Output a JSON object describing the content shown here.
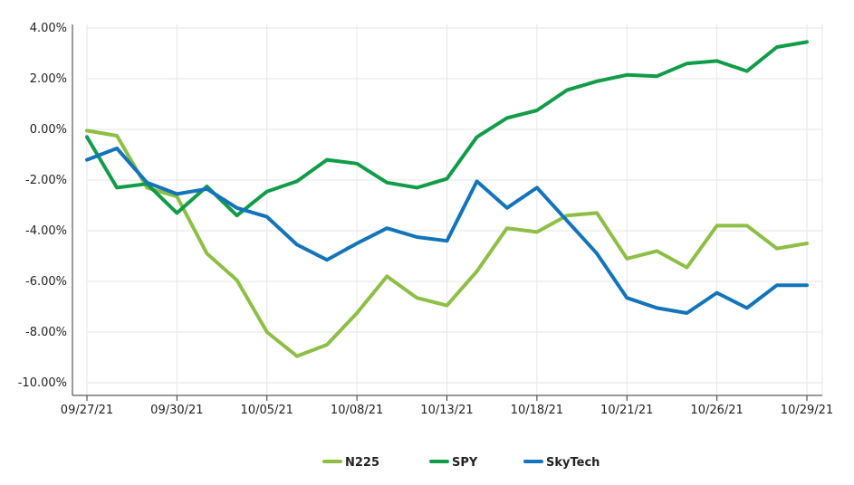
{
  "chart_data": {
    "type": "line",
    "x": [
      "09/27/21",
      "09/28/21",
      "09/29/21",
      "09/30/21",
      "10/01/21",
      "10/04/21",
      "10/05/21",
      "10/06/21",
      "10/07/21",
      "10/08/21",
      "10/11/21",
      "10/12/21",
      "10/13/21",
      "10/14/21",
      "10/15/21",
      "10/18/21",
      "10/19/21",
      "10/20/21",
      "10/21/21",
      "10/22/21",
      "10/25/21",
      "10/26/21",
      "10/27/21",
      "10/28/21",
      "10/29/21"
    ],
    "x_tick_labels": [
      "09/27/21",
      "09/30/21",
      "10/05/21",
      "10/08/21",
      "10/13/21",
      "10/18/21",
      "10/21/21",
      "10/26/21",
      "10/29/21"
    ],
    "y_tick_labels": [
      "4.00%",
      "2.00%",
      "0.00%",
      "-2.00%",
      "-4.00%",
      "-6.00%",
      "-8.00%",
      "-10.00%"
    ],
    "ylim": [
      -10.5,
      4.0
    ],
    "y_ticks": [
      4,
      2,
      0,
      -2,
      -4,
      -6,
      -8,
      -10
    ],
    "title": "",
    "xlabel": "",
    "ylabel": "",
    "grid": true,
    "legend_position": "bottom-center",
    "series": [
      {
        "name": "N225",
        "color": "#8dbf44",
        "values": [
          -0.05,
          -0.25,
          -2.3,
          -2.65,
          -4.9,
          -5.95,
          -8.0,
          -8.95,
          -8.5,
          -7.25,
          -5.8,
          -6.65,
          -6.95,
          -5.6,
          -3.9,
          -4.05,
          -3.4,
          -3.3,
          -5.1,
          -4.8,
          -5.45,
          -3.8,
          -3.8,
          -4.7,
          -4.5
        ]
      },
      {
        "name": "SPY",
        "color": "#119c49",
        "values": [
          -0.3,
          -2.3,
          -2.15,
          -3.3,
          -2.25,
          -3.4,
          -2.45,
          -2.05,
          -1.2,
          -1.35,
          -2.1,
          -2.3,
          -1.95,
          -0.3,
          0.45,
          0.75,
          1.55,
          1.9,
          2.15,
          2.1,
          2.6,
          2.7,
          2.3,
          3.25,
          3.45
        ]
      },
      {
        "name": "SkyTech",
        "color": "#1274bb",
        "values": [
          -1.2,
          -0.75,
          -2.1,
          -2.55,
          -2.35,
          -3.1,
          -3.45,
          -4.55,
          -5.15,
          -4.5,
          -3.9,
          -4.25,
          -4.4,
          -2.05,
          -3.1,
          -2.3,
          -3.6,
          -4.9,
          -6.65,
          -7.05,
          -7.25,
          -6.45,
          -7.05,
          -6.15,
          -6.15
        ]
      }
    ]
  }
}
